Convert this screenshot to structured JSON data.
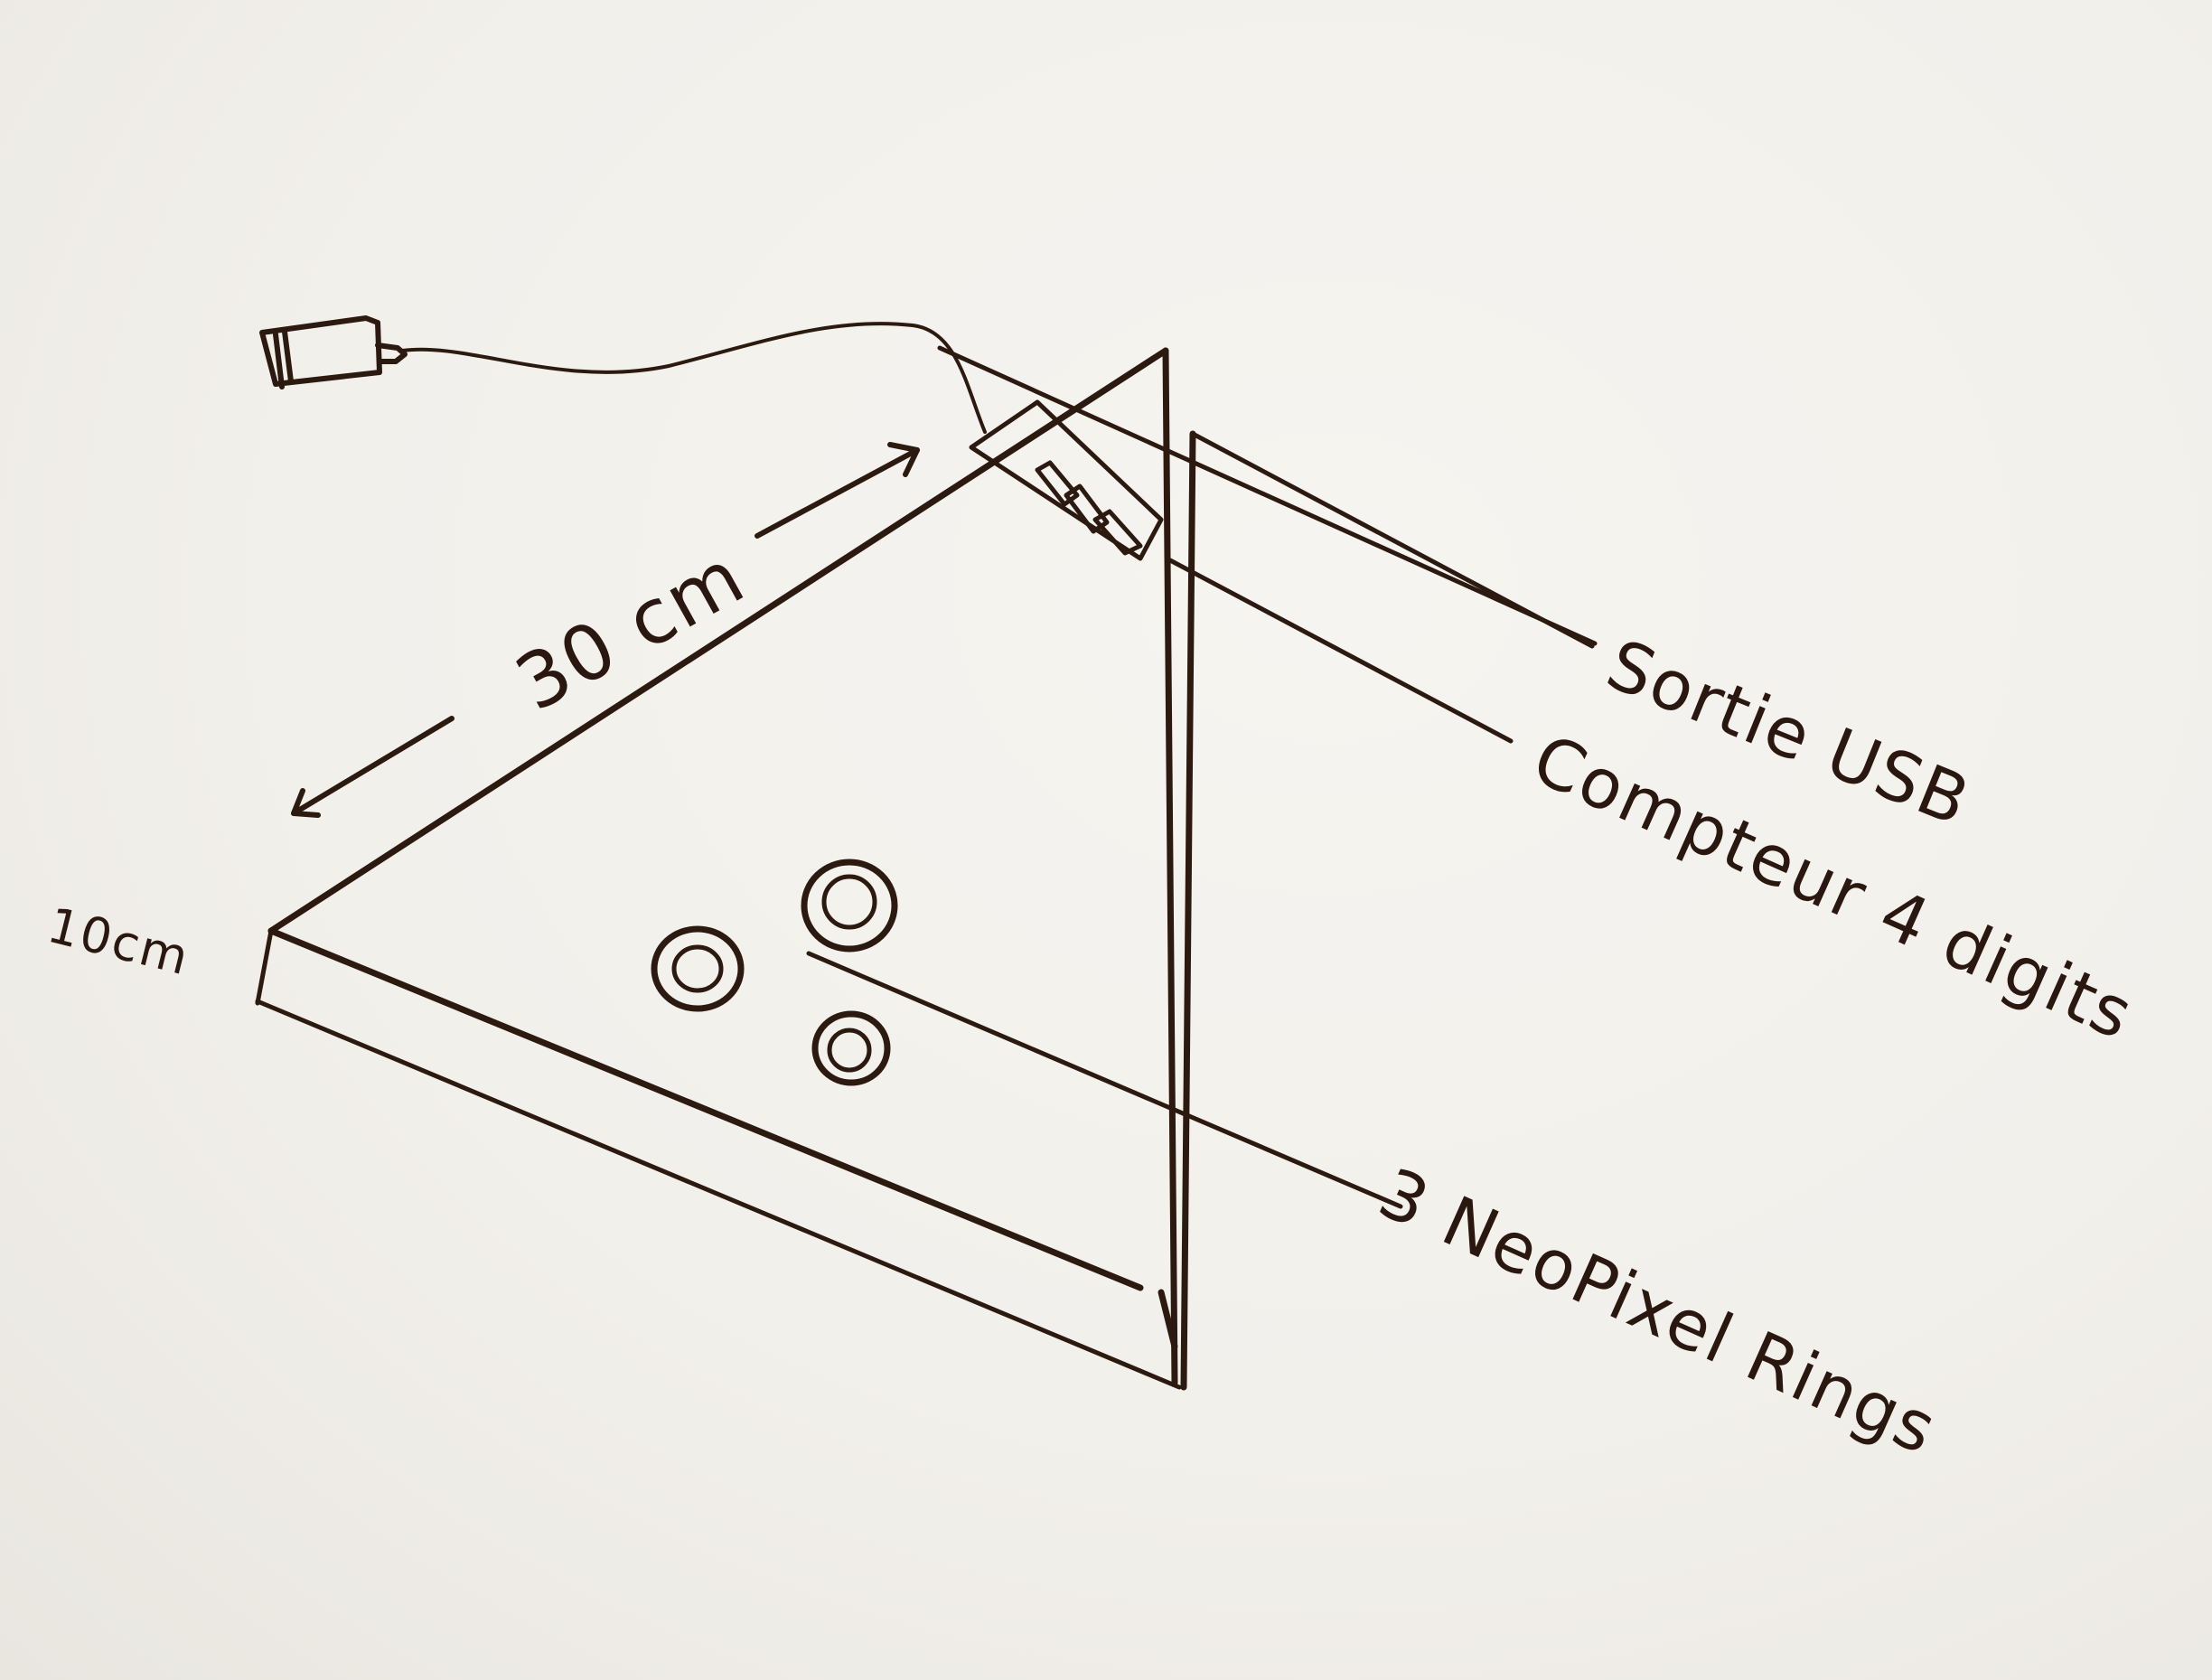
{
  "annotations": {
    "usb_output": "Sortie USB",
    "counter": "Compteur 4 digits",
    "rings": "3 NeoPixel Rings",
    "length_dimension": "30 cm",
    "height_dimension": "10cm"
  },
  "ink_color": "#2c1a10",
  "paper_color": "#f3f1ec"
}
